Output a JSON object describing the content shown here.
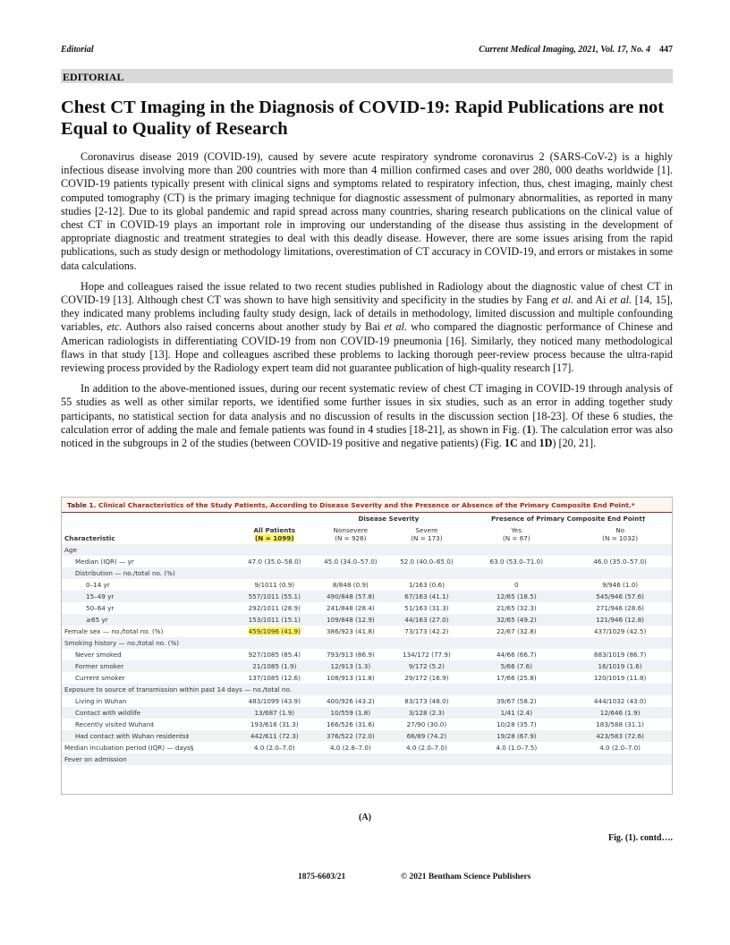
{
  "header": {
    "section": "Editorial",
    "journal": "Current Medical Imaging, 2021, Vol. 17, No. 4",
    "page": "447"
  },
  "section_label": "EDITORIAL",
  "title": "Chest CT Imaging in the Diagnosis of COVID-19: Rapid Publications are not Equal to Quality of Research",
  "paragraphs": [
    [
      "Coronavirus disease 2019 (COVID-19), caused by severe acute respiratory syndrome coronavirus 2 (SARS-CoV-2) is a highly infectious disease involving more than 200 countries with more than 4 million confirmed cases and over 280, 000 deaths worldwide [1]. COVID-19 patients typically present with clinical signs and symptoms related to respiratory infection, thus, chest imaging, mainly chest computed tomography (CT) is the primary imaging technique for diagnostic assessment of pulmonary abnormalities, as reported in many studies [2-12]. Due to its global pandemic and rapid spread across many countries, sharing research publications on the clinical value of chest CT in COVID-19 plays an important role in improving our understanding of the disease thus assisting in the development of appropriate diagnostic and treatment strategies to deal with this deadly disease. However, there are some issues arising from the rapid publications, such as study design or methodology limitations, overestimation of CT accuracy in COVID-19, and errors or mistakes in some data calculations."
    ],
    [
      "Hope and colleagues raised the issue related to two recent studies published in Radiology about the diagnostic value of chest CT in COVID-19 [13]. Although chest CT was shown to have high sensitivity and specificity in the studies by Fang ",
      "et al.",
      " and Ai ",
      "et al.",
      " [14, 15], they indicated many problems including faulty study design, lack of details in methodology, limited discussion and multiple confounding variables, ",
      "etc.",
      " Authors also raised concerns about another study by Bai ",
      "et al.",
      " who compared the diagnostic performance of Chinese and American radiologists in differentiating COVID-19 from non COVID-19 pneumonia [16]. Similarly, they noticed many methodological flaws in that study [13]. Hope and colleagues ascribed these problems to lacking thorough peer-review process because the ultra-rapid reviewing process provided by the Radiology expert team did not guarantee publication of high-quality research [17]."
    ],
    [
      "In addition to the above-mentioned issues, during our recent systematic review of chest CT imaging in COVID-19 through analysis of 55 studies as well as other similar reports, we identified some further issues in six studies, such as an error in adding together study participants, no statistical section for data analysis and no discussion of results in the discussion section [18-23]. Of these 6 studies, the calculation error of adding the male and female patients was found in 4 studies [18-21], as shown in Fig. (",
      "1",
      "). The calculation error was also noticed in the subgroups in 2 of the studies (between COVID-19 positive and negative patients) (Fig. ",
      "1C",
      " and ",
      "1D",
      ") [20, 21]."
    ]
  ],
  "table": {
    "label": "Table 1.",
    "title": "Clinical Characteristics of the Study Patients, According to Disease Severity and the Presence or Absence of the Primary Composite End Point.*",
    "header": {
      "characteristic": "Characteristic",
      "all": {
        "name": "All Patients",
        "n": "(N = 1099)"
      },
      "groups": [
        {
          "name": "Disease Severity",
          "columns": [
            {
              "name": "Nonsevere",
              "n": "(N = 926)"
            },
            {
              "name": "Severe",
              "n": "(N = 173)"
            }
          ]
        },
        {
          "name": "Presence of Primary Composite End Point†",
          "columns": [
            {
              "name": "Yes",
              "n": "(N = 67)"
            },
            {
              "name": "No",
              "n": "(N = 1032)"
            }
          ]
        }
      ]
    },
    "rows": [
      {
        "label": "Age",
        "rows": [
          {
            "label": "Median (IQR) — yr",
            "values": [
              "47.0 (35.0–58.0)",
              "45.0 (34.0–57.0)",
              "52.0 (40.0–65.0)",
              "63.0 (53.0–71.0)",
              "46.0 (35.0–57.0)"
            ]
          },
          {
            "label": "Distribution — no./total no. (%)",
            "rows": [
              {
                "label": "0–14 yr",
                "values": [
                  "9/1011 (0.9)",
                  "8/848 (0.9)",
                  "1/163 (0.6)",
                  "0",
                  "9/946 (1.0)"
                ]
              },
              {
                "label": "15–49 yr",
                "values": [
                  "557/1011 (55.1)",
                  "490/848 (57.8)",
                  "67/163 (41.1)",
                  "12/65 (18.5)",
                  "545/946 (57.6)"
                ]
              },
              {
                "label": "50–64 yr",
                "values": [
                  "292/1011 (28.9)",
                  "241/848 (28.4)",
                  "51/163 (31.3)",
                  "21/65 (32.3)",
                  "271/946 (28.6)"
                ]
              },
              {
                "label": "≥65 yr",
                "values": [
                  "153/1011 (15.1)",
                  "109/848 (12.9)",
                  "44/163 (27.0)",
                  "32/65 (49.2)",
                  "121/946 (12.8)"
                ]
              }
            ]
          }
        ]
      },
      {
        "label": "Female sex — no./total no. (%)",
        "values": [
          "459/1096 (41.9)",
          "386/923 (41.8)",
          "73/173 (42.2)",
          "22/67 (32.8)",
          "437/1029 (42.5)"
        ]
      },
      {
        "label": "Smoking history — no./total no. (%)",
        "rows": [
          {
            "label": "Never smoked",
            "values": [
              "927/1085 (85.4)",
              "793/913 (86.9)",
              "134/172 (77.9)",
              "44/66 (66.7)",
              "883/1019 (86.7)"
            ]
          },
          {
            "label": "Former smoker",
            "values": [
              "21/1085 (1.9)",
              "12/913 (1.3)",
              "9/172 (5.2)",
              "5/66 (7.6)",
              "16/1019 (1.6)"
            ]
          },
          {
            "label": "Current smoker",
            "values": [
              "137/1085 (12.6)",
              "108/913 (11.8)",
              "29/172 (16.9)",
              "17/66 (25.8)",
              "120/1019 (11.8)"
            ]
          }
        ]
      },
      {
        "label": "Exposure to source of transmission within past 14 days — no./total no.",
        "rows": [
          {
            "label": "Living in Wuhan",
            "values": [
              "483/1099 (43.9)",
              "400/926 (43.2)",
              "83/173 (48.0)",
              "39/67 (58.2)",
              "444/1032 (43.0)"
            ]
          },
          {
            "label": "Contact with wildlife",
            "values": [
              "13/687 (1.9)",
              "10/559 (1.8)",
              "3/128 (2.3)",
              "1/41 (2.4)",
              "12/646 (1.9)"
            ]
          },
          {
            "label": "Recently visited Wuhan‡",
            "values": [
              "193/616 (31.3)",
              "166/526 (31.6)",
              "27/90 (30.0)",
              "10/28 (35.7)",
              "183/588 (31.1)"
            ]
          },
          {
            "label": "Had contact with Wuhan residents‡",
            "values": [
              "442/611 (72.3)",
              "376/522 (72.0)",
              "66/89 (74.2)",
              "19/28 (67.9)",
              "423/583 (72.6)"
            ]
          }
        ]
      },
      {
        "label": "Median incubation period (IQR) — days§",
        "values": [
          "4.0 (2.0–7.0)",
          "4.0 (2.8–7.0)",
          "4.0 (2.0–7.0)",
          "4.0 (1.0–7.5)",
          "4.0 (2.0–7.0)"
        ]
      },
      {
        "label": "Fever on admission",
        "rows": []
      }
    ]
  },
  "caption": "(A)",
  "continued": "Fig. (1). contd….",
  "footer": {
    "issn": "1875-6603/21",
    "copyright": "© 2021 Bentham Science Publishers"
  }
}
